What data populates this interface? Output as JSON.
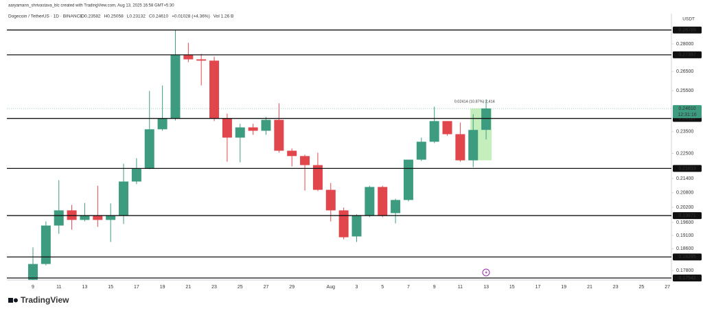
{
  "chart_data": {
    "type": "candlestick",
    "credit": "aaryamann_shrivastava_blc created with TradingView.com, Aug 13, 2025 16:58 GMT+5:30",
    "symbol": "Dogecoin / TetherUS · 1D · BINANCE",
    "ohlc_legend": [
      "O0.23582",
      "H0.25058",
      "L0.23132",
      "C0.24610",
      "+0.01028 (+4.36%)",
      "Vol 1.26 B"
    ],
    "currency": "USDT",
    "watermark": "TradingView",
    "log_scale": true,
    "up_color": "#3d9c80",
    "down_color": "#e0464c",
    "level_color": "#111111",
    "categories": [
      "9",
      null,
      "11",
      null,
      "13",
      null,
      "15",
      null,
      "17",
      null,
      "19",
      null,
      "21",
      null,
      "23",
      null,
      "25",
      null,
      "27",
      null,
      "29",
      null,
      null,
      "Aug",
      null,
      "3",
      null,
      "5",
      null,
      "7",
      null,
      "9",
      null,
      "11",
      null,
      "13",
      null,
      "15",
      null,
      "17",
      null,
      "19",
      null,
      "21",
      null,
      "23",
      null,
      "25",
      null,
      "27"
    ],
    "open": [
      0.1748,
      0.1804,
      0.1948,
      0.2008,
      0.197,
      0.1987,
      0.197,
      0.1987,
      0.2127,
      0.2183,
      0.2361,
      0.2413,
      0.274,
      0.2715,
      0.2708,
      0.2413,
      0.2322,
      0.237,
      0.2354,
      0.2406,
      0.2262,
      0.2238,
      0.2198,
      0.2092,
      0.2008,
      0.1906,
      0.1987,
      0.2104,
      0.1997,
      0.205,
      0.2222,
      0.2303,
      0.24,
      0.2338,
      0.2219,
      0.23582,
      null,
      null,
      null,
      null,
      null,
      null,
      null,
      null,
      null,
      null,
      null,
      null,
      null,
      null
    ],
    "high": [
      0.1865,
      0.1964,
      0.2133,
      0.203,
      0.2038,
      0.2109,
      0.2036,
      0.2204,
      0.2228,
      0.2549,
      0.2577,
      0.2879,
      0.2806,
      0.2745,
      0.273,
      0.2436,
      0.2387,
      0.2387,
      0.242,
      0.2487,
      0.2272,
      0.2244,
      0.2253,
      0.2121,
      0.2019,
      0.1992,
      0.2109,
      0.2109,
      0.2055,
      0.2222,
      0.2322,
      0.247,
      0.24,
      0.2393,
      0.2433,
      0.25058,
      null,
      null,
      null,
      null,
      null,
      null,
      null,
      null,
      null,
      null,
      null,
      null,
      null,
      null
    ],
    "low": [
      0.1747,
      0.1799,
      0.1916,
      0.1932,
      0.1964,
      0.1943,
      0.1885,
      0.1954,
      0.2116,
      0.218,
      0.2354,
      0.2403,
      0.27,
      0.2577,
      0.24,
      0.2213,
      0.221,
      0.2335,
      0.2335,
      0.2253,
      0.2192,
      0.2089,
      0.2087,
      0.1964,
      0.1895,
      0.1885,
      0.1981,
      0.1981,
      0.1956,
      0.2044,
      0.2216,
      0.2297,
      0.2331,
      0.2213,
      0.2189,
      0.23132,
      null,
      null,
      null,
      null,
      null,
      null,
      null,
      null,
      null,
      null,
      null,
      null,
      null,
      null
    ],
    "close": [
      0.1804,
      0.1948,
      0.2008,
      0.197,
      0.1987,
      0.197,
      0.1987,
      0.2127,
      0.2183,
      0.2361,
      0.2413,
      0.274,
      0.2715,
      0.2708,
      0.2413,
      0.2322,
      0.237,
      0.2354,
      0.2406,
      0.2262,
      0.2238,
      0.2198,
      0.2092,
      0.2008,
      0.1903,
      0.1987,
      0.2104,
      0.1987,
      0.205,
      0.2222,
      0.2303,
      0.24,
      0.2338,
      0.2219,
      0.2358,
      0.2461,
      null,
      null,
      null,
      null,
      null,
      null,
      null,
      null,
      null,
      null,
      null,
      null,
      null,
      null
    ],
    "ylim": [
      0.1747,
      0.2974
    ],
    "yticks": [
      {
        "value": 0.28,
        "label": "0.28000"
      },
      {
        "value": 0.265,
        "label": "0.26500"
      },
      {
        "value": 0.255,
        "label": "0.25500"
      },
      {
        "value": 0.235,
        "label": "0.23500"
      },
      {
        "value": 0.225,
        "label": "0.22500"
      },
      {
        "value": 0.214,
        "label": "0.21400"
      },
      {
        "value": 0.208,
        "label": "0.20800"
      },
      {
        "value": 0.202,
        "label": "0.20200"
      },
      {
        "value": 0.196,
        "label": "0.19600"
      },
      {
        "value": 0.191,
        "label": "0.19100"
      },
      {
        "value": 0.186,
        "label": "0.18600"
      },
      {
        "value": 0.178,
        "label": "0.17800"
      }
    ],
    "levels": [
      0.28789,
      0.27397,
      0.24127,
      0.21833,
      0.19871,
      0.18295,
      0.17542
    ],
    "current_price": {
      "value": 0.2461,
      "label": "0.24610"
    },
    "countdown": "12:31:16",
    "measure": {
      "from": 0.2219,
      "to": 0.2461,
      "label": "0.02414 (10.87%) 2,414"
    }
  }
}
